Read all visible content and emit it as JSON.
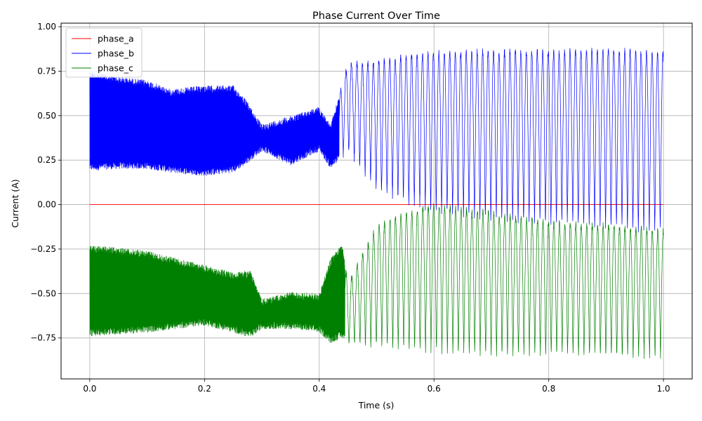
{
  "chart_data": {
    "type": "line",
    "title": "Phase Current Over Time",
    "xlabel": "Time (s)",
    "ylabel": "Current (A)",
    "xlim": [
      -0.05,
      1.05
    ],
    "ylim": [
      -0.98,
      1.02
    ],
    "xticks": [
      0.0,
      0.2,
      0.4,
      0.6,
      0.8,
      1.0
    ],
    "xtick_labels": [
      "0.0",
      "0.2",
      "0.4",
      "0.6",
      "0.8",
      "1.0"
    ],
    "yticks": [
      1.0,
      0.75,
      0.5,
      0.25,
      0.0,
      -0.25,
      -0.5,
      -0.75
    ],
    "ytick_labels": [
      "1.00",
      "0.75",
      "0.50",
      "0.25",
      "0.00",
      "−0.25",
      "−0.50",
      "−0.75"
    ],
    "grid": true,
    "legend_position": "top-left",
    "series": [
      {
        "name": "phase_a",
        "color": "#ff0000",
        "style": "constant",
        "x": [
          0.0,
          1.0
        ],
        "values": [
          0.0,
          0.0
        ]
      },
      {
        "name": "phase_b",
        "color": "#0000ff",
        "style": "oscillating-envelope",
        "x": [
          0.0,
          0.05,
          0.1,
          0.14,
          0.2,
          0.25,
          0.27,
          0.3,
          0.35,
          0.4,
          0.42,
          0.45,
          0.5,
          0.55,
          0.6,
          0.7,
          0.8,
          0.9,
          1.0
        ],
        "upper": [
          0.75,
          0.72,
          0.7,
          0.65,
          0.67,
          0.67,
          0.6,
          0.45,
          0.5,
          0.55,
          0.45,
          0.79,
          0.8,
          0.83,
          0.85,
          0.86,
          0.86,
          0.87,
          0.85
        ],
        "lower": [
          0.19,
          0.2,
          0.2,
          0.18,
          0.16,
          0.18,
          0.22,
          0.3,
          0.22,
          0.3,
          0.2,
          0.3,
          0.08,
          0.02,
          -0.03,
          -0.08,
          -0.1,
          -0.12,
          -0.15
        ],
        "cycles": [
          0,
          0,
          0,
          0,
          0,
          0,
          0,
          0,
          0,
          0,
          0,
          1,
          1,
          1,
          1,
          1,
          1,
          1,
          1
        ]
      },
      {
        "name": "phase_c",
        "color": "#008000",
        "style": "oscillating-envelope",
        "x": [
          0.0,
          0.05,
          0.1,
          0.15,
          0.2,
          0.25,
          0.28,
          0.3,
          0.35,
          0.4,
          0.42,
          0.44,
          0.45,
          0.5,
          0.55,
          0.6,
          0.7,
          0.8,
          0.9,
          1.0
        ],
        "upper": [
          -0.23,
          -0.24,
          -0.26,
          -0.3,
          -0.34,
          -0.38,
          -0.37,
          -0.53,
          -0.49,
          -0.5,
          -0.3,
          -0.22,
          -0.45,
          -0.12,
          -0.05,
          0.0,
          -0.05,
          -0.1,
          -0.12,
          -0.15
        ],
        "lower": [
          -0.74,
          -0.73,
          -0.72,
          -0.7,
          -0.68,
          -0.72,
          -0.75,
          -0.7,
          -0.7,
          -0.72,
          -0.78,
          -0.75,
          -0.78,
          -0.79,
          -0.8,
          -0.82,
          -0.84,
          -0.84,
          -0.85,
          -0.85
        ],
        "cycles": [
          0,
          0,
          0,
          0,
          0,
          0,
          0,
          0,
          0,
          0,
          0,
          0,
          1,
          1,
          1,
          1,
          1,
          1,
          1,
          1
        ]
      }
    ]
  }
}
